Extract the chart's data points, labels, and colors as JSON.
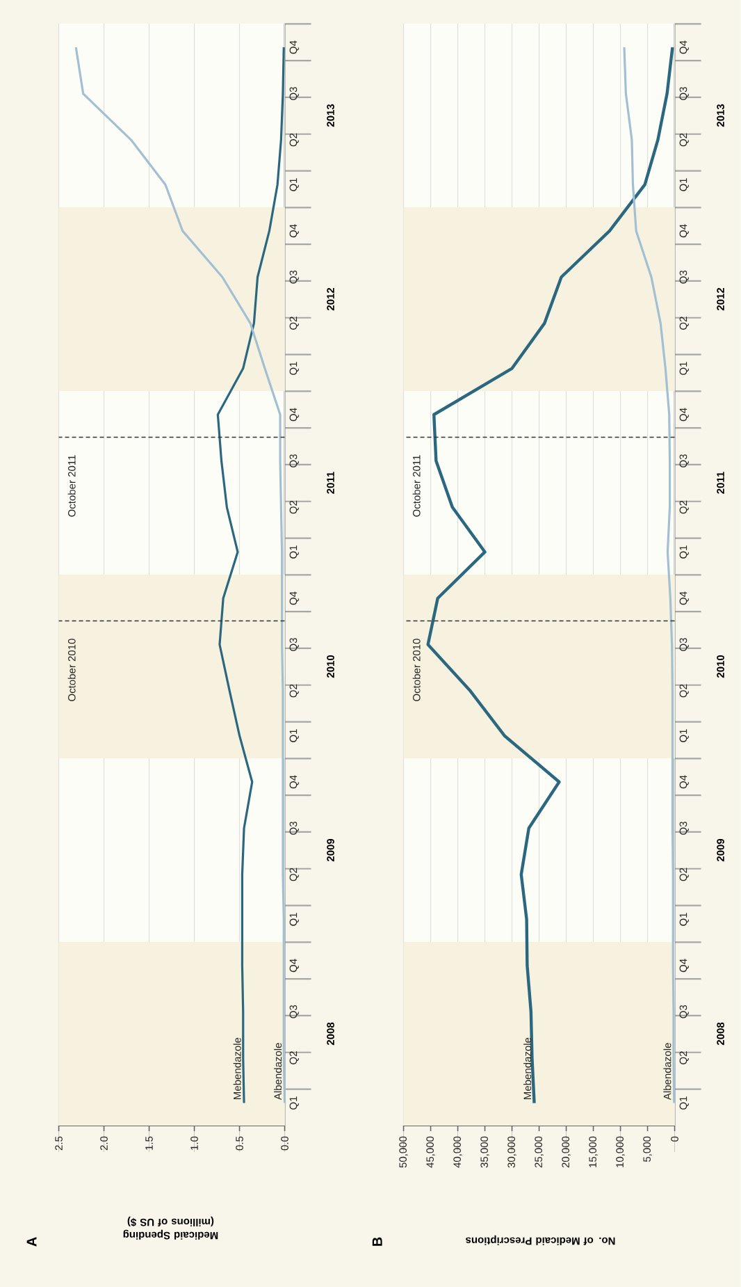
{
  "chart_data": [
    {
      "type": "line",
      "orientation": "horizontal",
      "title": "A",
      "xlabel": "Medicaid Spending (millions of US $)",
      "x": [
        "2008-02-15",
        "2008-05-15",
        "2008-08-15",
        "2008-11-15",
        "2009-02-15",
        "2009-05-15",
        "2009-08-15",
        "2009-11-15",
        "2010-02-15",
        "2010-05-15",
        "2010-08-15",
        "2010-11-15",
        "2011-02-15",
        "2011-05-15",
        "2011-08-15",
        "2011-11-15",
        "2012-02-15",
        "2012-05-15",
        "2012-08-15",
        "2012-11-15",
        "2013-02-15",
        "2013-05-15",
        "2013-08-15",
        "2013-11-15"
      ],
      "series": [
        {
          "name": "Mebendazole",
          "color": "#2b6880",
          "values": [
            0.45,
            0.46,
            0.46,
            0.47,
            0.47,
            0.47,
            0.45,
            0.36,
            0.5,
            0.61,
            0.72,
            0.68,
            0.52,
            0.64,
            0.7,
            0.74,
            0.46,
            0.34,
            0.3,
            0.17,
            0.08,
            0.04,
            0.02,
            0.01
          ]
        },
        {
          "name": "Albendazole",
          "color": "#a3bfd2",
          "values": [
            0.0,
            0.01,
            0.01,
            0.01,
            0.01,
            0.02,
            0.02,
            0.02,
            0.02,
            0.02,
            0.03,
            0.03,
            0.03,
            0.04,
            0.05,
            0.05,
            0.22,
            0.38,
            0.69,
            1.13,
            1.32,
            1.7,
            2.23,
            2.31
          ]
        }
      ],
      "ylim": [
        "2008-01-01",
        "2014-01-01"
      ],
      "yticks": [
        {
          "value": "2008-02-15",
          "label": "Q1"
        },
        {
          "value": "2008-05-15",
          "label": "Q2"
        },
        {
          "value": "2008-08-15",
          "label": "Q3"
        },
        {
          "value": "2008-11-15",
          "label": "Q4"
        },
        {
          "value": "2009-02-15",
          "label": "Q1"
        },
        {
          "value": "2009-05-15",
          "label": "Q2"
        },
        {
          "value": "2009-08-15",
          "label": "Q3"
        },
        {
          "value": "2009-11-15",
          "label": "Q4"
        },
        {
          "value": "2010-02-15",
          "label": "Q1"
        },
        {
          "value": "2010-05-15",
          "label": "Q2"
        },
        {
          "value": "2010-08-15",
          "label": "Q3"
        },
        {
          "value": "2010-11-15",
          "label": "Q4"
        },
        {
          "value": "2011-02-15",
          "label": "Q1"
        },
        {
          "value": "2011-05-15",
          "label": "Q2"
        },
        {
          "value": "2011-08-15",
          "label": "Q3"
        },
        {
          "value": "2011-11-15",
          "label": "Q4"
        },
        {
          "value": "2012-02-15",
          "label": "Q1"
        },
        {
          "value": "2012-05-15",
          "label": "Q2"
        },
        {
          "value": "2012-08-15",
          "label": "Q3"
        },
        {
          "value": "2012-11-15",
          "label": "Q4"
        },
        {
          "value": "2013-02-15",
          "label": "Q1"
        },
        {
          "value": "2013-05-15",
          "label": "Q2"
        },
        {
          "value": "2013-08-15",
          "label": "Q3"
        },
        {
          "value": "2013-11-15",
          "label": "Q4"
        }
      ],
      "xlim": [
        2.5,
        0
      ],
      "xticks": [
        {
          "value": 0,
          "label": "0.0"
        },
        {
          "value": 0.5,
          "label": "0.5"
        },
        {
          "value": 1,
          "label": "1.0"
        },
        {
          "value": 1.5,
          "label": "1.5"
        },
        {
          "value": 2,
          "label": "2.0"
        },
        {
          "value": 2.5,
          "label": "2.5"
        }
      ],
      "grid": "x",
      "bands": [
        {
          "axis": "y",
          "from": "2008-01-01",
          "to": "2009-01-01",
          "color": "#f6f2df"
        },
        {
          "axis": "y",
          "from": "2010-01-01",
          "to": "2011-01-01",
          "color": "#f6f2df"
        },
        {
          "axis": "y",
          "from": "2012-01-01",
          "to": "2013-01-01",
          "color": "#f6f2df"
        }
      ],
      "ref_lines": [
        {
          "axis": "y",
          "value": "2010-10-01",
          "label": "October 2010",
          "color": "#333333",
          "line_style": "dashed"
        },
        {
          "axis": "y",
          "value": "2011-10-01",
          "label": "October 2011",
          "color": "#333333",
          "line_style": "dashed"
        }
      ],
      "annotations": [
        "2008",
        "2009",
        "2010",
        "2011",
        "2012",
        "2013"
      ]
    },
    {
      "type": "line",
      "orientation": "horizontal",
      "title": "B",
      "xlabel": "No. of Medicaid Prescriptions",
      "x": [
        "2008-02-15",
        "2008-05-15",
        "2008-08-15",
        "2008-11-15",
        "2009-02-15",
        "2009-05-15",
        "2009-08-15",
        "2009-11-15",
        "2010-02-15",
        "2010-05-15",
        "2010-08-15",
        "2010-11-15",
        "2011-02-15",
        "2011-05-15",
        "2011-08-15",
        "2011-11-15",
        "2012-02-15",
        "2012-05-15",
        "2012-08-15",
        "2012-11-15",
        "2013-02-15",
        "2013-05-15",
        "2013-08-15",
        "2013-11-15"
      ],
      "series": [
        {
          "name": "Mebendazole",
          "color": "#2b6880",
          "values": [
            25900,
            26300,
            26500,
            27200,
            27300,
            28300,
            26900,
            21300,
            31400,
            37700,
            45500,
            43700,
            35000,
            41000,
            44000,
            44400,
            30000,
            24000,
            20900,
            12000,
            5500,
            3100,
            1400,
            400
          ]
        },
        {
          "name": "Albendazole",
          "color": "#a3bfd2",
          "values": [
            100,
            200,
            200,
            300,
            300,
            300,
            400,
            400,
            400,
            400,
            500,
            800,
            1300,
            900,
            900,
            1000,
            1700,
            2600,
            4300,
            7100,
            7700,
            7900,
            9000,
            9300
          ]
        }
      ],
      "ylim": [
        "2008-01-01",
        "2014-01-01"
      ],
      "yticks": [
        {
          "value": "2008-02-15",
          "label": "Q1"
        },
        {
          "value": "2008-05-15",
          "label": "Q2"
        },
        {
          "value": "2008-08-15",
          "label": "Q3"
        },
        {
          "value": "2008-11-15",
          "label": "Q4"
        },
        {
          "value": "2009-02-15",
          "label": "Q1"
        },
        {
          "value": "2009-05-15",
          "label": "Q2"
        },
        {
          "value": "2009-08-15",
          "label": "Q3"
        },
        {
          "value": "2009-11-15",
          "label": "Q4"
        },
        {
          "value": "2010-02-15",
          "label": "Q1"
        },
        {
          "value": "2010-05-15",
          "label": "Q2"
        },
        {
          "value": "2010-08-15",
          "label": "Q3"
        },
        {
          "value": "2010-11-15",
          "label": "Q4"
        },
        {
          "value": "2011-02-15",
          "label": "Q1"
        },
        {
          "value": "2011-05-15",
          "label": "Q2"
        },
        {
          "value": "2011-08-15",
          "label": "Q3"
        },
        {
          "value": "2011-11-15",
          "label": "Q4"
        },
        {
          "value": "2012-02-15",
          "label": "Q1"
        },
        {
          "value": "2012-05-15",
          "label": "Q2"
        },
        {
          "value": "2012-08-15",
          "label": "Q3"
        },
        {
          "value": "2012-11-15",
          "label": "Q4"
        },
        {
          "value": "2013-02-15",
          "label": "Q1"
        },
        {
          "value": "2013-05-15",
          "label": "Q2"
        },
        {
          "value": "2013-08-15",
          "label": "Q3"
        },
        {
          "value": "2013-11-15",
          "label": "Q4"
        }
      ],
      "xlim": [
        50000,
        0
      ],
      "xticks": [
        {
          "value": 0,
          "label": "0"
        },
        {
          "value": 5000,
          "label": "5,000"
        },
        {
          "value": 10000,
          "label": "10,000"
        },
        {
          "value": 15000,
          "label": "15,000"
        },
        {
          "value": 20000,
          "label": "20,000"
        },
        {
          "value": 25000,
          "label": "25,000"
        },
        {
          "value": 30000,
          "label": "30,000"
        },
        {
          "value": 35000,
          "label": "35,000"
        },
        {
          "value": 40000,
          "label": "40,000"
        },
        {
          "value": 45000,
          "label": "45,000"
        },
        {
          "value": 50000,
          "label": "50,000"
        }
      ],
      "grid": "x",
      "bands": [
        {
          "axis": "y",
          "from": "2008-01-01",
          "to": "2009-01-01",
          "color": "#f6f2df"
        },
        {
          "axis": "y",
          "from": "2010-01-01",
          "to": "2011-01-01",
          "color": "#f6f2df"
        },
        {
          "axis": "y",
          "from": "2012-01-01",
          "to": "2013-01-01",
          "color": "#f6f2df"
        }
      ],
      "ref_lines": [
        {
          "axis": "y",
          "value": "2010-10-01",
          "label": "October 2010",
          "color": "#333333",
          "line_style": "dashed"
        },
        {
          "axis": "y",
          "value": "2011-10-01",
          "label": "October 2011",
          "color": "#333333",
          "line_style": "dashed"
        }
      ],
      "annotations": [
        "2008",
        "2009",
        "2010",
        "2011",
        "2012",
        "2013"
      ]
    }
  ]
}
